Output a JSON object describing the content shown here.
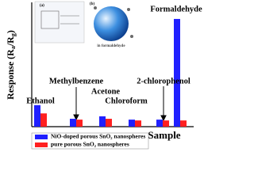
{
  "chart_data": {
    "type": "bar",
    "y_label": [
      "Response (R",
      "a",
      "/R",
      "g",
      ")"
    ],
    "x_label": "Sample",
    "categories": [
      "Ethanol",
      "Methylbenzene",
      "Acetone",
      "Chloroform",
      "2-chlorophenol",
      "Formaldehyde"
    ],
    "series": [
      {
        "name": "NiO-doped porous SnO₂ nanospheres",
        "color": "#2020ff",
        "values": [
          5.2,
          1.9,
          2.5,
          1.7,
          1.7,
          26
        ]
      },
      {
        "name": "pure porous SnO₂ nanospheres",
        "color": "#ff2020",
        "values": [
          3.2,
          1.7,
          1.9,
          1.5,
          1.5,
          1.5
        ]
      }
    ],
    "ylim": [
      0,
      30
    ],
    "inset_labels": [
      "(a)",
      "(b)",
      "in formaldehyde"
    ]
  }
}
